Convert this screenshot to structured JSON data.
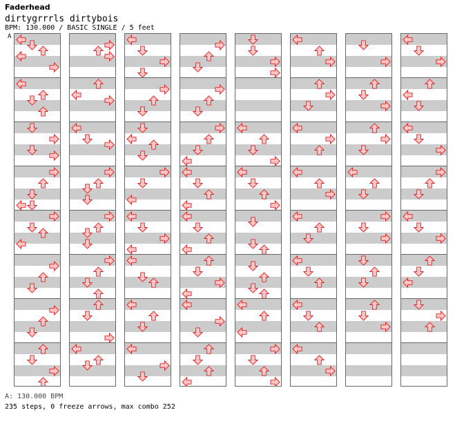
{
  "header": {
    "artist": "Faderhead",
    "title": "dirtygrrrls dirtybois",
    "meta": "BPM: 130.000 / BASIC SINGLE / 5 feet",
    "bpm_marker": "A"
  },
  "footer": {
    "bpm_legend": "A: 130.000 BPM",
    "stats": "235 steps, 0 freeze arrows, max combo 252"
  },
  "colors": {
    "arrow_fill": "#ffc8c8",
    "arrow_stroke": "#e02020",
    "stripe": "#cccccc",
    "border": "#666666"
  },
  "chart": {
    "columns": 8,
    "measures_per_column": 8,
    "measures": [
      [
        "L",
        "D",
        "U",
        "L",
        "",
        "R",
        ""
      ],
      [
        "L",
        "",
        "U",
        "D",
        "",
        "U",
        ""
      ],
      [
        "D",
        "",
        "R",
        "",
        "D",
        "R",
        ""
      ],
      [
        "R",
        "",
        "U",
        "",
        "D",
        "",
        "LD",
        ""
      ],
      [
        "R",
        "",
        "D",
        "U",
        "",
        "L",
        "",
        ""
      ],
      [
        "",
        "R",
        "",
        "U",
        "",
        "D",
        "",
        ""
      ],
      [
        "",
        "R",
        "",
        "U",
        "",
        "D",
        "",
        ""
      ],
      [
        "U",
        "",
        "D",
        "",
        "R",
        "",
        "U",
        ""
      ],
      [
        "",
        "R",
        "U",
        "R",
        "",
        "",
        "",
        ""
      ],
      [
        "U",
        "",
        "L",
        "R",
        "",
        "",
        "",
        ""
      ],
      [
        "L",
        "",
        "D",
        "R",
        "",
        "",
        "",
        ""
      ],
      [
        "R",
        "",
        "U",
        "D",
        "",
        "D",
        "",
        ""
      ],
      [
        "R",
        "",
        "U",
        "D",
        "",
        "D",
        "",
        ""
      ],
      [
        "R",
        "",
        "U",
        "",
        "D",
        "",
        "U",
        ""
      ],
      [
        "U",
        "",
        "D",
        "",
        "",
        "",
        "R",
        ""
      ],
      [
        "L",
        "",
        "U",
        "D",
        "",
        "",
        "",
        ""
      ],
      [
        "L",
        "",
        "D",
        "",
        "R",
        "",
        "D",
        ""
      ],
      [
        "",
        "R",
        "",
        "U",
        "",
        "D",
        "",
        ""
      ],
      [
        "D",
        "",
        "L",
        "U",
        "",
        "D",
        "",
        ""
      ],
      [
        "R",
        "",
        "D",
        "",
        "",
        "L",
        "",
        ""
      ],
      [
        "L",
        "",
        "D",
        "",
        "R",
        "",
        "L",
        ""
      ],
      [
        "L",
        "",
        "",
        "D",
        "U",
        "",
        "",
        ""
      ],
      [
        "L",
        "",
        "U",
        "",
        "D",
        "",
        "",
        ""
      ],
      [
        "L",
        "",
        "",
        "R",
        "",
        "D",
        "",
        ""
      ],
      [
        "",
        "R",
        "",
        "U",
        "",
        "D",
        "",
        ""
      ],
      [
        "",
        "R",
        "",
        "U",
        "",
        "D",
        "",
        ""
      ],
      [
        "R",
        "",
        "U",
        "",
        "D",
        "",
        "L",
        ""
      ],
      [
        "L",
        "",
        "D",
        "",
        "U",
        "",
        "L",
        ""
      ],
      [
        "L",
        "",
        "D",
        "",
        "U",
        "",
        "L",
        ""
      ],
      [
        "U",
        "",
        "D",
        "",
        "R",
        "",
        "L",
        ""
      ],
      [
        "L",
        "",
        "",
        "R",
        "",
        "D",
        "",
        ""
      ],
      [
        "U",
        "",
        "D",
        "",
        "U",
        "",
        "L",
        ""
      ],
      [
        "D",
        "",
        "D",
        "",
        "R",
        "",
        "R",
        ""
      ],
      [
        "",
        "",
        "",
        "",
        "",
        "",
        "",
        ""
      ],
      [
        "L",
        "",
        "U",
        "",
        "D",
        "",
        "R",
        ""
      ],
      [
        "L",
        "",
        "D",
        "",
        "U",
        "",
        "R",
        ""
      ],
      [
        "",
        "D",
        "",
        "",
        "",
        "D",
        "U",
        ""
      ],
      [
        "",
        "D",
        "",
        "U",
        "",
        "D",
        "U",
        ""
      ],
      [
        "L",
        "",
        "U",
        "",
        "",
        "L",
        "",
        ""
      ],
      [
        "R",
        "",
        "D",
        "",
        "U",
        "",
        "R",
        ""
      ],
      [
        "L",
        "",
        "U",
        "",
        "R",
        "",
        "",
        ""
      ],
      [
        "U",
        "",
        "R",
        "",
        "D",
        "",
        "",
        ""
      ],
      [
        "L",
        "",
        "R",
        "",
        "U",
        "",
        "",
        ""
      ],
      [
        "L",
        "",
        "U",
        "",
        "R",
        "",
        "",
        ""
      ],
      [
        "L",
        "",
        "U",
        "",
        "D",
        "",
        "",
        ""
      ],
      [
        "L",
        "",
        "D",
        "",
        "U",
        "",
        "",
        ""
      ],
      [
        "L",
        "",
        "D",
        "",
        "U",
        "",
        "",
        ""
      ],
      [
        "L",
        "",
        "U",
        "",
        "R",
        "",
        "",
        ""
      ],
      [
        "",
        "D",
        "",
        "",
        "R",
        "",
        "",
        ""
      ],
      [
        "U",
        "",
        "D",
        "",
        "R",
        "",
        "",
        ""
      ],
      [
        "U",
        "",
        "R",
        "",
        "D",
        "",
        "",
        ""
      ],
      [
        "L",
        "",
        "U",
        "",
        "D",
        "",
        "",
        ""
      ],
      [
        "R",
        "",
        "D",
        "",
        "R",
        "",
        "",
        ""
      ],
      [
        "D",
        "",
        "U",
        "",
        "D",
        "",
        "",
        ""
      ],
      [
        "U",
        "",
        "D",
        "",
        "R",
        "",
        "",
        ""
      ],
      [
        "",
        "",
        "",
        "",
        "",
        "",
        "",
        ""
      ],
      [
        "L",
        "",
        "D",
        "",
        "R",
        "",
        "",
        ""
      ],
      [
        "U",
        "",
        "L",
        "",
        "D",
        "",
        "",
        ""
      ],
      [
        "L",
        "",
        "D",
        "",
        "R",
        "",
        "",
        ""
      ],
      [
        "R",
        "",
        "U",
        "",
        "D",
        "",
        "",
        ""
      ],
      [
        "L",
        "",
        "D",
        "",
        "R",
        "",
        "",
        ""
      ],
      [
        "U",
        "",
        "D",
        "",
        "L",
        "",
        "",
        ""
      ],
      [
        "D",
        "",
        "R",
        "",
        "U",
        "",
        "",
        ""
      ],
      [
        "",
        "",
        "",
        "",
        "",
        "",
        "",
        ""
      ]
    ]
  }
}
